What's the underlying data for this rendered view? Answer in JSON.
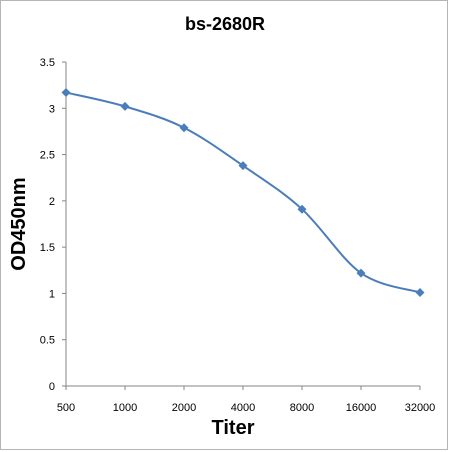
{
  "chart_data": {
    "type": "line",
    "title": "bs-2680R",
    "xlabel": "Titer",
    "ylabel": "OD450nm",
    "categories": [
      "500",
      "1000",
      "2000",
      "4000",
      "8000",
      "16000",
      "32000"
    ],
    "series": [
      {
        "values": [
          3.17,
          3.02,
          2.79,
          2.38,
          1.91,
          1.22,
          1.01
        ]
      }
    ],
    "ylim": [
      0,
      3.5
    ],
    "yticks": [
      "0",
      "0.5",
      "1",
      "1.5",
      "2",
      "2.5",
      "3",
      "3.5"
    ],
    "grid": false,
    "legend": "none",
    "line_color": "#4a7ebb",
    "marker": "diamond"
  }
}
